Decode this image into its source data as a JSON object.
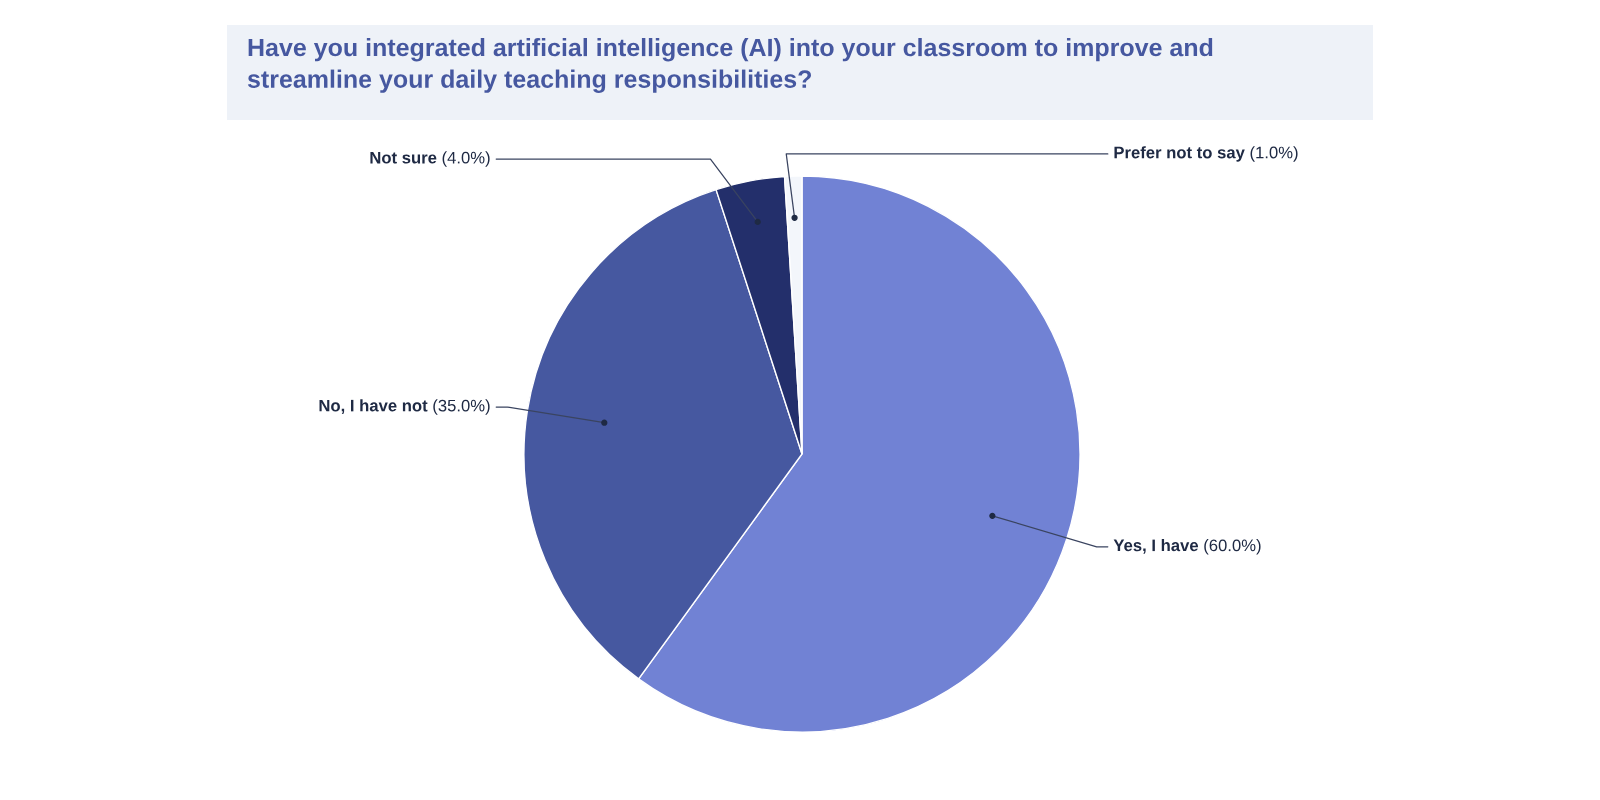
{
  "chart_data": {
    "type": "pie",
    "title": "Have you integrated artificial intelligence (AI) into your classroom to improve and streamline your daily teaching responsibilities?",
    "categories": [
      "Yes, I have",
      "No, I have not",
      "Not sure",
      "Prefer not to say"
    ],
    "values": [
      60,
      35,
      4,
      1
    ],
    "colors": [
      "#7182d4",
      "#4658a0",
      "#232f6b",
      "#f3f6fb"
    ],
    "value_labels": [
      "(60.0%)",
      "(35.0%)",
      "(4.0%)",
      "(1.0%)"
    ]
  }
}
